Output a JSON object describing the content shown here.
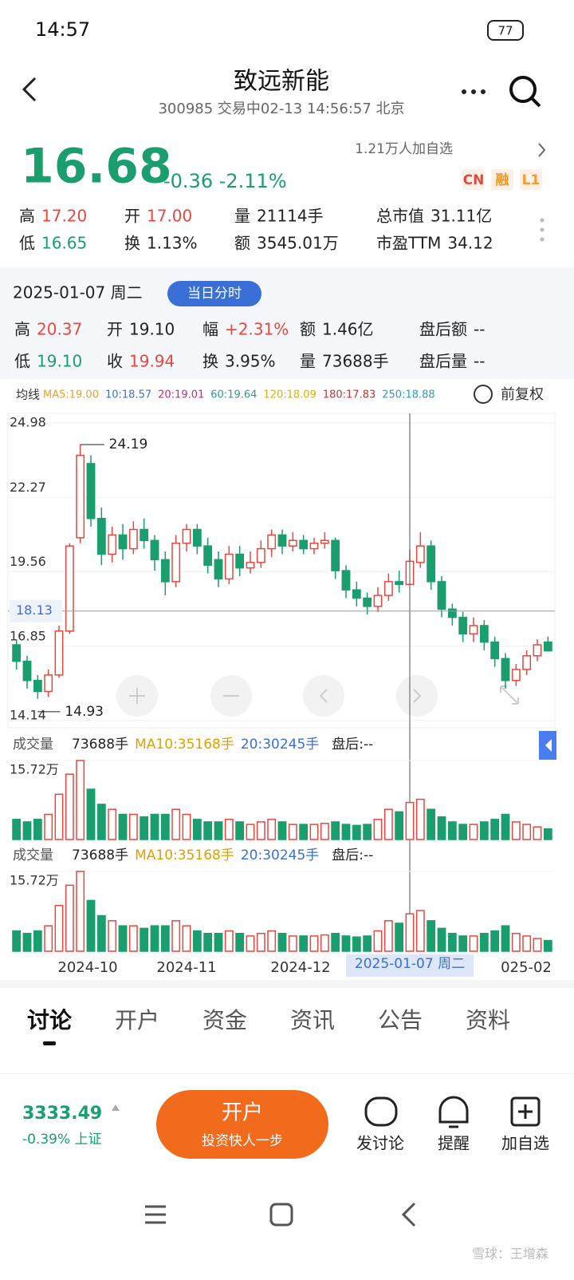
{
  "status": {
    "time": "14:57",
    "battery": "77"
  },
  "header": {
    "title": "致远新能",
    "subtitle": "300985 交易中02-13 14:56:57 北京"
  },
  "quote": {
    "price": "16.68",
    "change": "-0.36 -2.11%",
    "followers": "1.21万人加自选",
    "tags": [
      "CN",
      "融",
      "L1"
    ],
    "rows": [
      [
        [
          "高",
          "17.20"
        ],
        [
          "开",
          "17.00"
        ],
        [
          "量",
          "21114手"
        ],
        [
          "总市值",
          "31.11亿"
        ]
      ],
      [
        [
          "低",
          "16.65"
        ],
        [
          "换",
          "1.13%"
        ],
        [
          "额",
          "3545.01万"
        ],
        [
          "市盈TTM",
          "34.12"
        ]
      ]
    ]
  },
  "day": {
    "date": "2025-01-07 周二",
    "button": "当日分时",
    "rows": [
      [
        [
          "高",
          "20.37"
        ],
        [
          "开",
          "19.10"
        ],
        [
          "幅",
          "+2.31%"
        ],
        [
          "额",
          "1.46亿"
        ],
        [
          "盘后额",
          "--"
        ]
      ],
      [
        [
          "低",
          "19.10"
        ],
        [
          "收",
          "19.94"
        ],
        [
          "换",
          "3.95%"
        ],
        [
          "量",
          "73688手"
        ],
        [
          "盘后量",
          "--"
        ]
      ]
    ]
  },
  "ma": {
    "label": "均线",
    "items": [
      "MA5:19.00",
      "10:18.57",
      "20:19.01",
      "60:19.64",
      "120:18.09",
      "180:17.83",
      "250:18.88"
    ],
    "adjust": "前复权"
  },
  "kline": {
    "ylim": [
      14.14,
      24.98
    ],
    "yticks": [
      24.98,
      22.27,
      19.56,
      16.85,
      14.14
    ],
    "crosshair_index": 37,
    "crosshair_price": 18.13,
    "max": 24.19,
    "max_index": 6,
    "min": 14.93,
    "min_index": 2,
    "candles": [
      [
        16.9,
        16.3,
        17.1,
        16.0
      ],
      [
        16.3,
        15.6,
        16.5,
        15.3
      ],
      [
        15.6,
        15.2,
        15.8,
        14.93
      ],
      [
        15.2,
        15.8,
        16.0,
        15.0
      ],
      [
        15.8,
        17.4,
        17.6,
        15.7
      ],
      [
        17.4,
        20.5,
        20.6,
        17.3
      ],
      [
        20.8,
        23.8,
        24.19,
        20.6
      ],
      [
        23.5,
        21.5,
        23.8,
        21.2
      ],
      [
        21.5,
        20.2,
        21.9,
        19.8
      ],
      [
        20.2,
        20.9,
        21.2,
        19.9
      ],
      [
        20.9,
        20.4,
        21.3,
        20.0
      ],
      [
        20.4,
        21.1,
        21.4,
        20.2
      ],
      [
        21.1,
        20.7,
        21.5,
        20.4
      ],
      [
        20.7,
        20.0,
        20.9,
        19.6
      ],
      [
        20.0,
        19.2,
        20.3,
        18.7
      ],
      [
        19.2,
        20.6,
        20.9,
        19.0
      ],
      [
        20.6,
        21.1,
        21.3,
        20.3
      ],
      [
        21.1,
        20.5,
        21.3,
        20.2
      ],
      [
        20.5,
        19.8,
        20.8,
        19.5
      ],
      [
        20.0,
        19.3,
        20.3,
        19.0
      ],
      [
        19.3,
        20.2,
        20.5,
        19.1
      ],
      [
        20.2,
        19.7,
        20.5,
        19.4
      ],
      [
        19.7,
        19.9,
        20.3,
        19.5
      ],
      [
        19.9,
        20.4,
        20.7,
        19.7
      ],
      [
        20.4,
        20.9,
        21.1,
        20.1
      ],
      [
        20.9,
        20.5,
        21.1,
        20.2
      ],
      [
        20.5,
        20.7,
        21.0,
        20.3
      ],
      [
        20.7,
        20.4,
        20.9,
        20.2
      ],
      [
        20.4,
        20.6,
        20.8,
        20.2
      ],
      [
        20.6,
        20.7,
        21.0,
        20.4
      ],
      [
        20.7,
        19.6,
        20.8,
        19.3
      ],
      [
        19.6,
        18.9,
        19.8,
        18.6
      ],
      [
        18.9,
        18.6,
        19.2,
        18.3
      ],
      [
        18.6,
        18.3,
        18.8,
        18.0
      ],
      [
        18.3,
        18.7,
        19.0,
        18.1
      ],
      [
        18.7,
        19.2,
        19.5,
        18.5
      ],
      [
        19.2,
        19.1,
        19.6,
        18.8
      ],
      [
        19.1,
        19.94,
        20.37,
        19.1
      ],
      [
        19.9,
        20.5,
        21.0,
        19.7
      ],
      [
        20.5,
        19.2,
        20.7,
        18.9
      ],
      [
        19.2,
        18.2,
        19.4,
        17.9
      ],
      [
        18.2,
        17.9,
        18.4,
        17.6
      ],
      [
        17.9,
        17.3,
        18.1,
        17.0
      ],
      [
        17.3,
        17.6,
        17.9,
        17.0
      ],
      [
        17.6,
        17.0,
        17.8,
        16.7
      ],
      [
        17.0,
        16.4,
        17.2,
        16.1
      ],
      [
        16.4,
        15.6,
        16.6,
        15.3
      ],
      [
        15.6,
        16.0,
        16.2,
        15.4
      ],
      [
        16.0,
        16.5,
        16.7,
        15.8
      ],
      [
        16.5,
        16.9,
        17.1,
        16.3
      ],
      [
        17.0,
        16.68,
        17.2,
        16.65
      ]
    ]
  },
  "volume": {
    "title": "成交量",
    "items": [
      "73688手",
      "MA10:35168手",
      "20:30245手",
      "盘后:--"
    ],
    "ylim": [
      0,
      15.72
    ],
    "yticks": [
      {
        "value": 15.72,
        "label": "15.72万"
      }
    ],
    "values": [
      4,
      3.5,
      4,
      5,
      9,
      13,
      15.72,
      10,
      7,
      6,
      5,
      5,
      4.5,
      5,
      5,
      6,
      5,
      4,
      3.5,
      3.5,
      4,
      3.5,
      3,
      3.5,
      4,
      3.5,
      3,
      3,
      3,
      3.2,
      3.5,
      3,
      2.8,
      3,
      4,
      6,
      5.5,
      7.37,
      8,
      6,
      4.5,
      3.5,
      3,
      3,
      3.5,
      4,
      5,
      3.5,
      3,
      2.5,
      2.1
    ]
  },
  "xaxis": {
    "labels": [
      "2024-10",
      "2024-11",
      "2024-12",
      "025-02"
    ]
  },
  "tabs": [
    "讨论",
    "开户",
    "资金",
    "资讯",
    "公告",
    "资料"
  ],
  "bottom": {
    "index_value": "3333.49",
    "index_change": "-0.39% 上证",
    "button": "开户",
    "button_sub": "投资快人一步",
    "actions": [
      "发讨论",
      "提醒",
      "加自选"
    ],
    "watermark": "雪球：王增森"
  }
}
